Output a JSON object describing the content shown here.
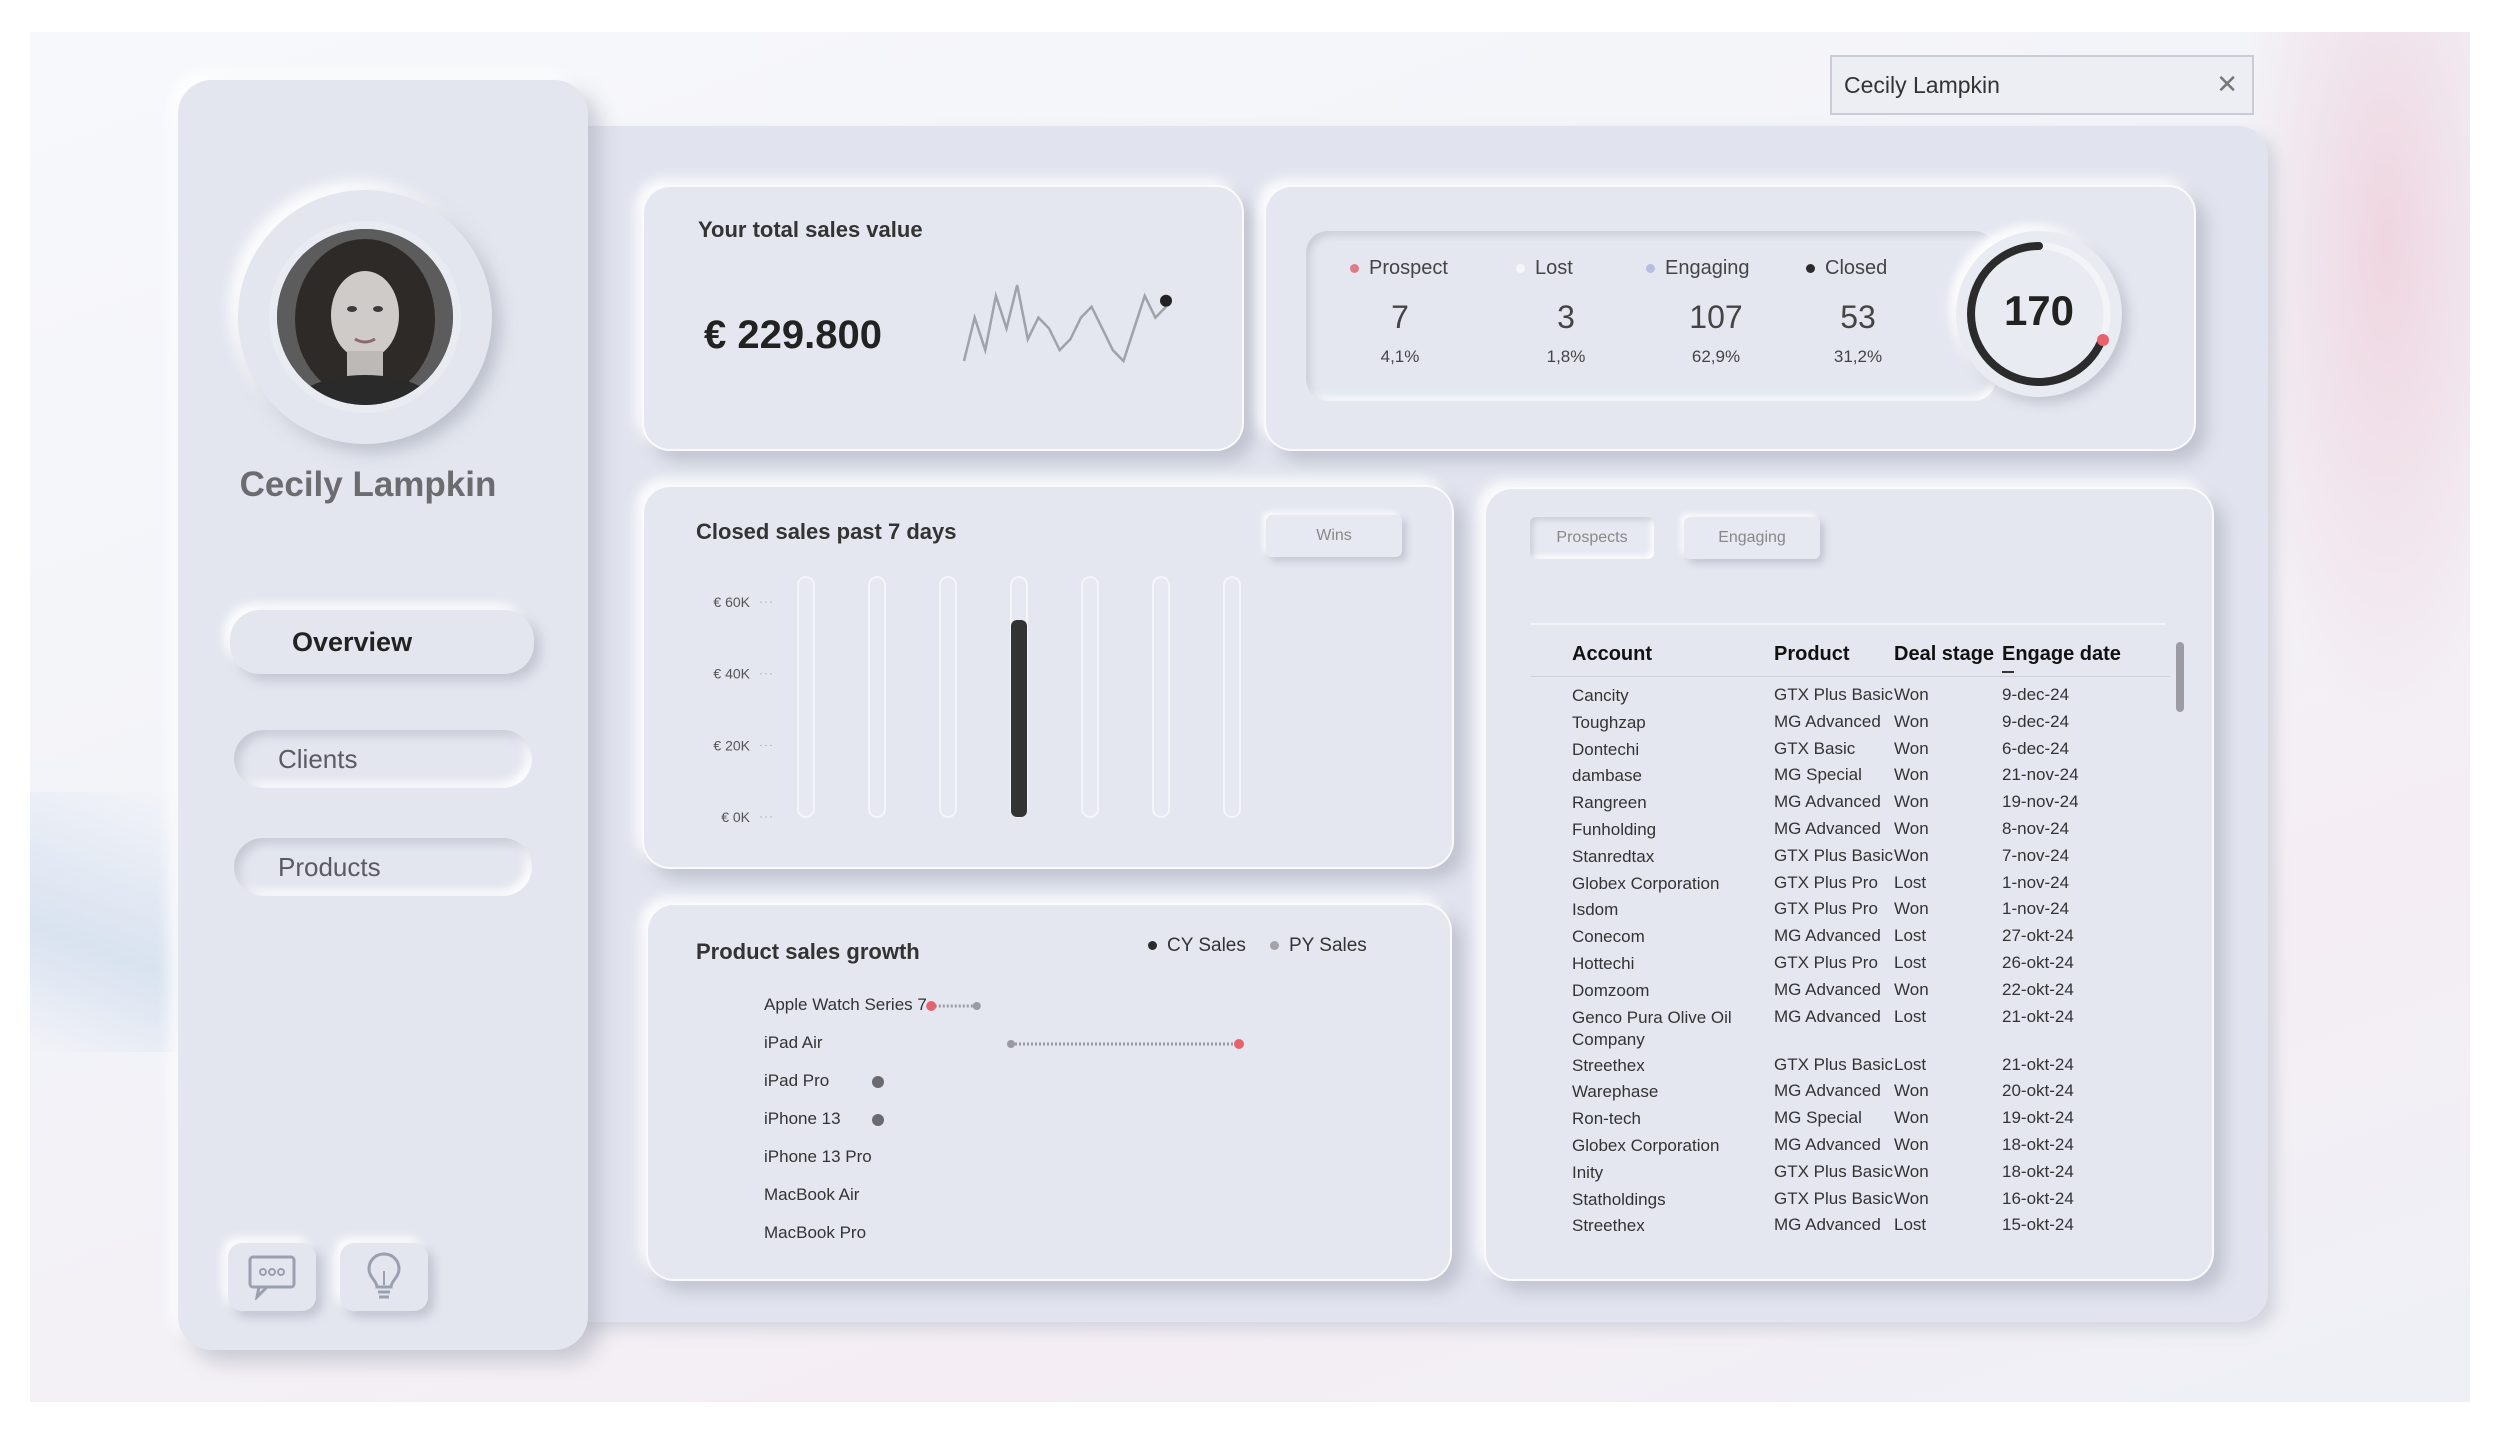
{
  "search": {
    "value": "Cecily Lampkin",
    "clear_icon": "close-icon"
  },
  "sidebar": {
    "user_name": "Cecily Lampkin",
    "nav": [
      {
        "label": "Overview",
        "active": true
      },
      {
        "label": "Clients",
        "active": false
      },
      {
        "label": "Products",
        "active": false
      }
    ],
    "footer_icons": [
      "chat-icon",
      "lightbulb-icon"
    ]
  },
  "total_sales": {
    "title": "Your total sales value",
    "value": "€ 229.800",
    "sparkline": [
      2,
      6,
      3,
      8,
      5,
      9,
      4,
      6,
      5,
      3,
      4,
      6,
      7,
      5,
      3,
      2,
      5,
      8,
      6,
      7
    ]
  },
  "pipeline": {
    "stages": [
      {
        "label": "Prospect",
        "count": "7",
        "pct": "4,1%",
        "color": "#e07a86"
      },
      {
        "label": "Lost",
        "count": "3",
        "pct": "1,8%",
        "color": "#f2f2f4"
      },
      {
        "label": "Engaging",
        "count": "107",
        "pct": "62,9%",
        "color": "#b8bde0"
      },
      {
        "label": "Closed",
        "count": "53",
        "pct": "31,2%",
        "color": "#2b2b2b"
      }
    ],
    "total": "170",
    "accent_color": "#e8626e"
  },
  "closed_sales": {
    "title": "Closed sales past 7 days",
    "filter_label": "Wins",
    "y_ticks": [
      "€ 60K",
      "€ 40K",
      "€ 20K",
      "€ 0K"
    ]
  },
  "chart_data": {
    "type": "bar",
    "categories": [
      "",
      "",
      "",
      "",
      "",
      "",
      ""
    ],
    "values": [
      0,
      0,
      0,
      55000,
      0,
      0,
      0
    ],
    "ylim": [
      0,
      67000
    ],
    "title": "Closed sales past 7 days",
    "xlabel": "",
    "ylabel": "",
    "grid": false
  },
  "product_growth": {
    "title": "Product sales growth",
    "legend": [
      {
        "label": "CY Sales",
        "color": "#2b2b2b"
      },
      {
        "label": "PY Sales",
        "color": "#a3a3a8"
      }
    ],
    "products": [
      {
        "label": "Apple Watch Series 7",
        "cy": 0.14,
        "py": 0.26
      },
      {
        "label": "iPad Air",
        "cy": 0.95,
        "py": 0.35
      },
      {
        "label": "iPad Pro",
        "cy": 0.0,
        "py": 0.0
      },
      {
        "label": "iPhone 13",
        "cy": 0.0,
        "py": 0.0
      },
      {
        "label": "iPhone 13 Pro",
        "cy": null,
        "py": null
      },
      {
        "label": "MacBook Air",
        "cy": null,
        "py": null
      },
      {
        "label": "MacBook Pro",
        "cy": null,
        "py": null
      }
    ]
  },
  "deals": {
    "tabs": [
      "Prospects",
      "Engaging"
    ],
    "columns": [
      "Account",
      "Product",
      "Deal stage",
      "Engage date"
    ],
    "rows": [
      [
        "Cancity",
        "GTX Plus Basic",
        "Won",
        "9-dec-24"
      ],
      [
        "Toughzap",
        "MG Advanced",
        "Won",
        "9-dec-24"
      ],
      [
        "Dontechi",
        "GTX Basic",
        "Won",
        "6-dec-24"
      ],
      [
        "dambase",
        "MG Special",
        "Won",
        "21-nov-24"
      ],
      [
        "Rangreen",
        "MG Advanced",
        "Won",
        "19-nov-24"
      ],
      [
        "Funholding",
        "MG Advanced",
        "Won",
        "8-nov-24"
      ],
      [
        "Stanredtax",
        "GTX Plus Basic",
        "Won",
        "7-nov-24"
      ],
      [
        "Globex Corporation",
        "GTX Plus Pro",
        "Lost",
        "1-nov-24"
      ],
      [
        "Isdom",
        "GTX Plus Pro",
        "Won",
        "1-nov-24"
      ],
      [
        "Conecom",
        "MG Advanced",
        "Lost",
        "27-okt-24"
      ],
      [
        "Hottechi",
        "GTX Plus Pro",
        "Lost",
        "26-okt-24"
      ],
      [
        "Domzoom",
        "MG Advanced",
        "Won",
        "22-okt-24"
      ],
      [
        "Genco Pura Olive Oil Company",
        "MG Advanced",
        "Lost",
        "21-okt-24"
      ],
      [
        "Streethex",
        "GTX Plus Basic",
        "Lost",
        "21-okt-24"
      ],
      [
        "Warephase",
        "MG Advanced",
        "Won",
        "20-okt-24"
      ],
      [
        "Ron-tech",
        "MG Special",
        "Won",
        "19-okt-24"
      ],
      [
        "Globex Corporation",
        "MG Advanced",
        "Won",
        "18-okt-24"
      ],
      [
        "Inity",
        "GTX Plus Basic",
        "Won",
        "18-okt-24"
      ],
      [
        "Statholdings",
        "GTX Plus Basic",
        "Won",
        "16-okt-24"
      ],
      [
        "Streethex",
        "MG Advanced",
        "Lost",
        "15-okt-24"
      ]
    ]
  }
}
